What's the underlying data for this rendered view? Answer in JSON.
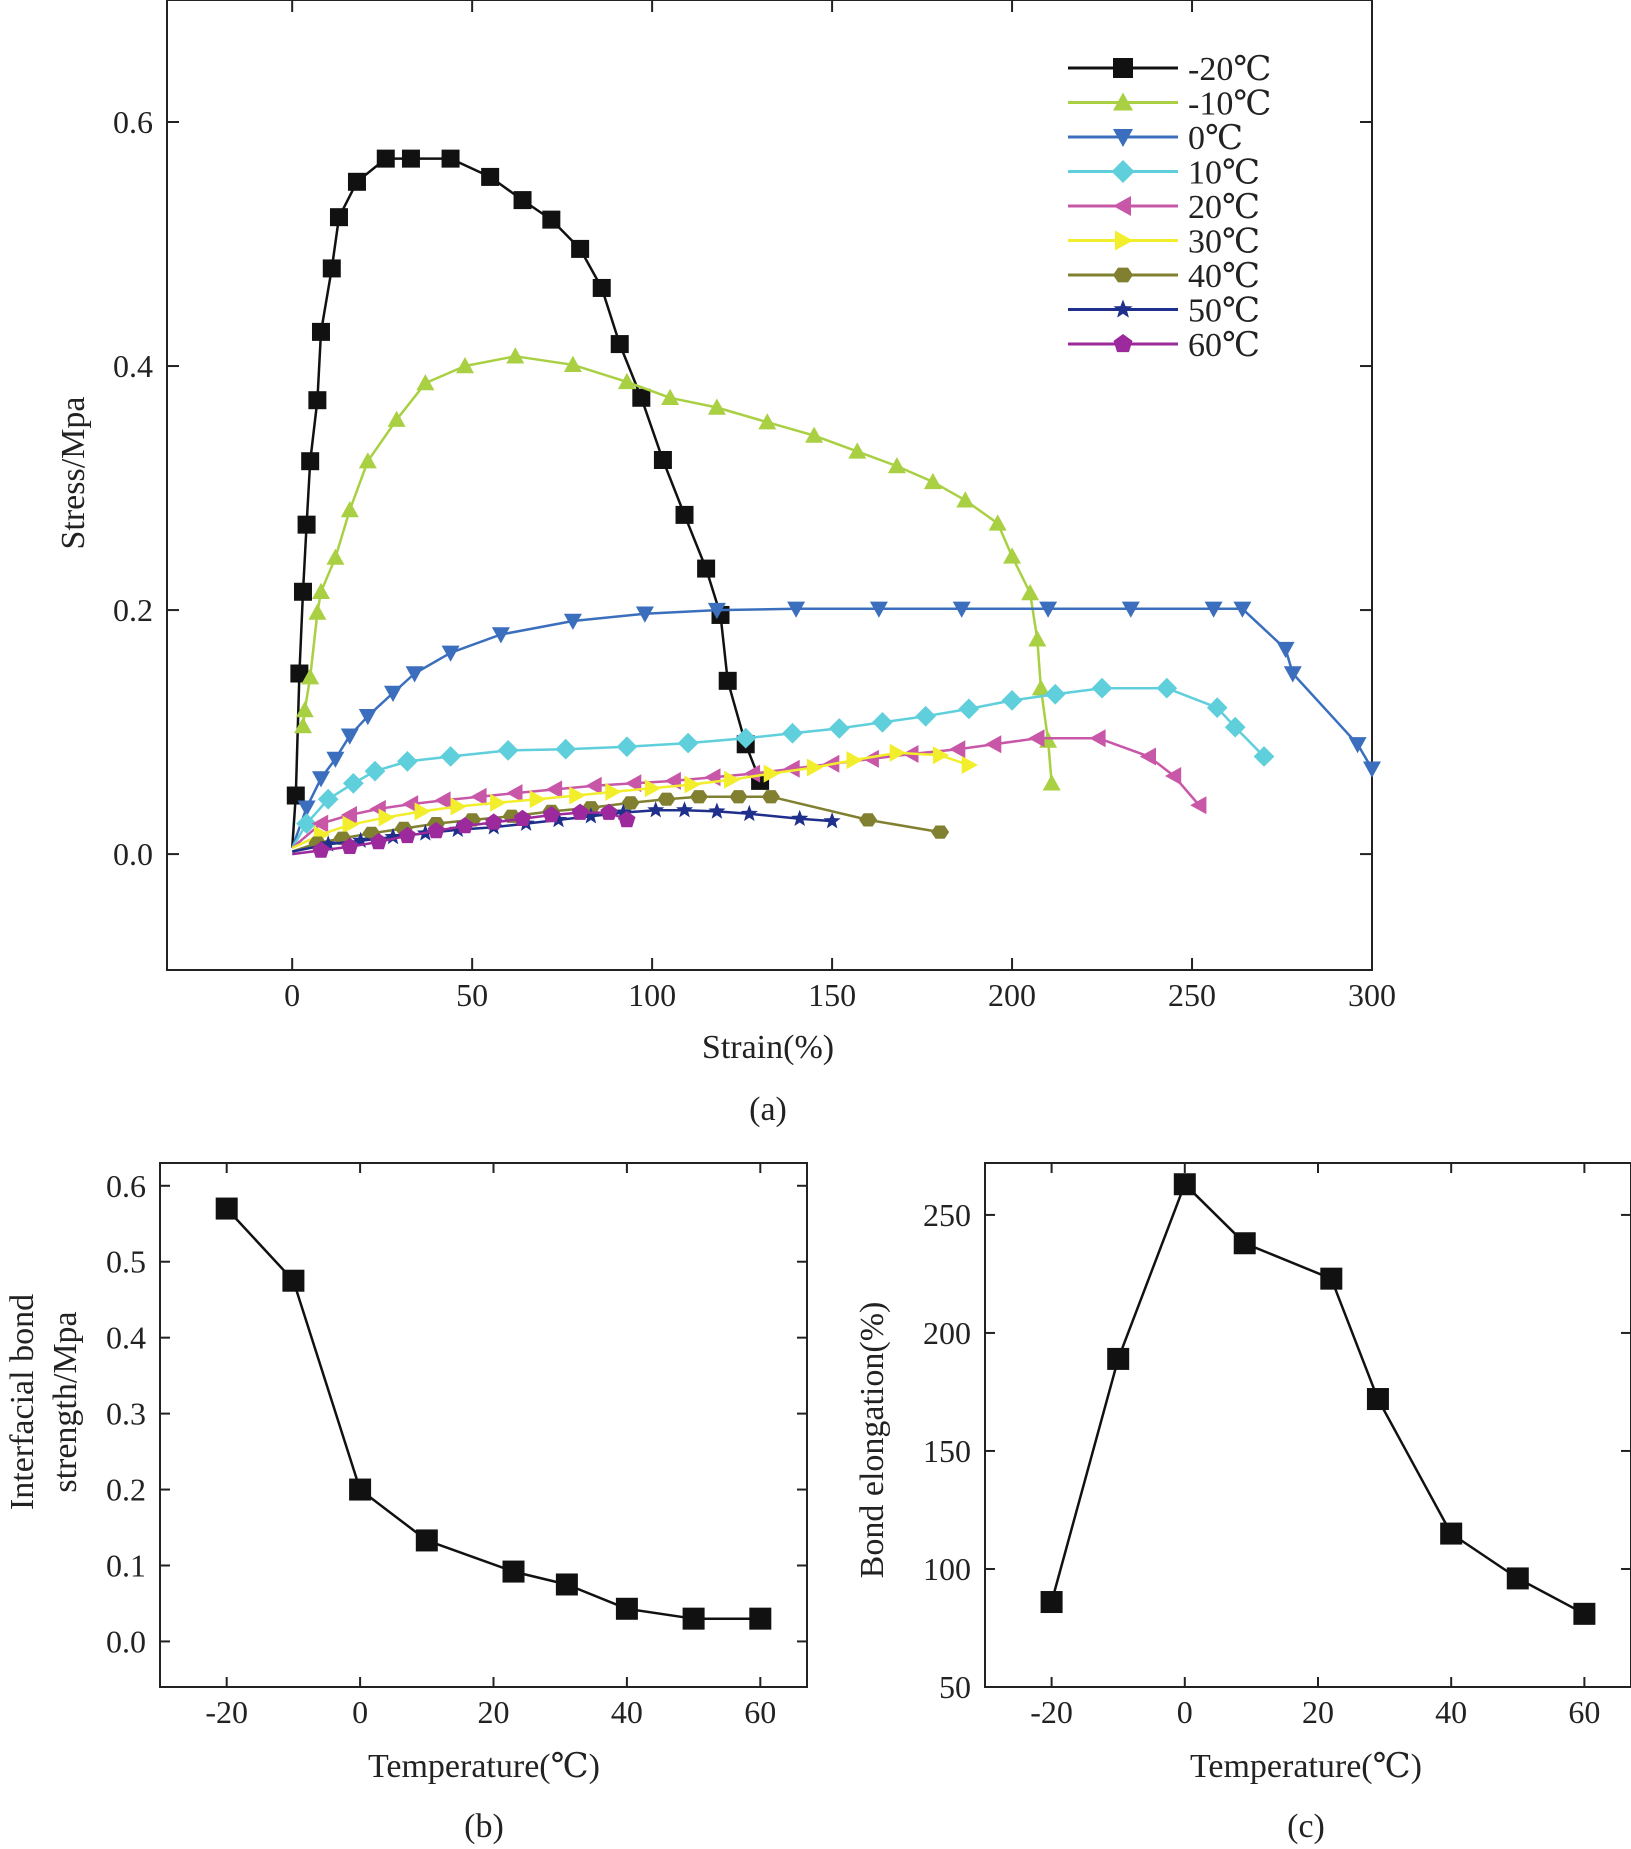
{
  "chart_data": [
    {
      "id": "a",
      "type": "line",
      "panel_label": "(a)",
      "xlabel": "Strain(%)",
      "ylabel": "Stress/Mpa",
      "xlim": [
        -27,
        300
      ],
      "ylim": [
        -0.095,
        0.7
      ],
      "xticks": [
        0,
        50,
        100,
        150,
        200,
        250,
        300
      ],
      "yticks": [
        0.0,
        0.2,
        0.4,
        0.6
      ],
      "ytick_labels": [
        "0.0",
        "0.2",
        "0.4",
        "0.6"
      ],
      "legend_position": "top-right",
      "series": [
        {
          "name": "-20℃",
          "color": "#111111",
          "marker": "square",
          "x": [
            0,
            1,
            2,
            3,
            4,
            5,
            7,
            8,
            11,
            13,
            18,
            26,
            33,
            44,
            55,
            64,
            72,
            80,
            86,
            91,
            97,
            103,
            109,
            115,
            119,
            121,
            126,
            130
          ],
          "y": [
            0.005,
            0.048,
            0.148,
            0.215,
            0.27,
            0.322,
            0.372,
            0.428,
            0.48,
            0.522,
            0.551,
            0.57,
            0.57,
            0.57,
            0.555,
            0.536,
            0.52,
            0.496,
            0.464,
            0.418,
            0.374,
            0.323,
            0.278,
            0.234,
            0.196,
            0.142,
            0.09,
            0.06
          ]
        },
        {
          "name": "-10℃",
          "color": "#a9d042",
          "marker": "triangle-up",
          "x": [
            3,
            3.5,
            5,
            7,
            8,
            12,
            16,
            21,
            29,
            37,
            48,
            62,
            78,
            93,
            105,
            118,
            132,
            145,
            157,
            168,
            178,
            187,
            196,
            200,
            205,
            207,
            208,
            210,
            211
          ],
          "y": [
            0.105,
            0.118,
            0.145,
            0.198,
            0.215,
            0.243,
            0.282,
            0.322,
            0.356,
            0.386,
            0.4,
            0.408,
            0.401,
            0.387,
            0.374,
            0.366,
            0.354,
            0.343,
            0.33,
            0.318,
            0.305,
            0.29,
            0.271,
            0.244,
            0.214,
            0.176,
            0.136,
            0.093,
            0.058
          ]
        },
        {
          "name": "0℃",
          "color": "#3b6fbe",
          "marker": "triangle-down",
          "x": [
            0,
            4,
            8,
            12,
            16,
            21,
            28,
            34,
            44,
            58,
            78,
            98,
            118,
            140,
            163,
            186,
            210,
            233,
            256,
            264,
            276,
            278,
            296,
            300
          ],
          "y": [
            0.005,
            0.038,
            0.062,
            0.078,
            0.097,
            0.113,
            0.132,
            0.148,
            0.165,
            0.18,
            0.191,
            0.197,
            0.2,
            0.201,
            0.201,
            0.201,
            0.201,
            0.201,
            0.201,
            0.201,
            0.168,
            0.148,
            0.09,
            0.07
          ]
        },
        {
          "name": "10℃",
          "color": "#5ecfdb",
          "marker": "diamond",
          "x": [
            0,
            4,
            10,
            17,
            23,
            32,
            44,
            60,
            76,
            93,
            110,
            126,
            139,
            152,
            164,
            176,
            188,
            200,
            212,
            225,
            243,
            257,
            262,
            270
          ],
          "y": [
            0.005,
            0.025,
            0.045,
            0.058,
            0.068,
            0.076,
            0.08,
            0.085,
            0.086,
            0.088,
            0.091,
            0.095,
            0.099,
            0.103,
            0.108,
            0.113,
            0.119,
            0.126,
            0.131,
            0.136,
            0.136,
            0.12,
            0.104,
            0.08
          ]
        },
        {
          "name": "20℃",
          "color": "#c957a8",
          "marker": "triangle-left",
          "x": [
            0,
            8,
            16,
            24,
            33,
            42,
            52,
            62,
            73,
            84,
            95,
            106,
            117,
            128,
            139,
            150,
            161,
            172,
            185,
            195,
            207,
            224,
            238,
            245,
            252
          ],
          "y": [
            0.005,
            0.025,
            0.032,
            0.037,
            0.041,
            0.044,
            0.047,
            0.05,
            0.053,
            0.056,
            0.058,
            0.06,
            0.063,
            0.066,
            0.07,
            0.074,
            0.078,
            0.082,
            0.086,
            0.09,
            0.095,
            0.095,
            0.08,
            0.064,
            0.04
          ]
        },
        {
          "name": "30℃",
          "color": "#f2ee2c",
          "marker": "triangle-right",
          "x": [
            0,
            8,
            16,
            26,
            36,
            46,
            57,
            68,
            79,
            89,
            100,
            111,
            122,
            133,
            145,
            156,
            168,
            180,
            188
          ],
          "y": [
            0.005,
            0.016,
            0.024,
            0.03,
            0.035,
            0.039,
            0.042,
            0.045,
            0.048,
            0.051,
            0.054,
            0.057,
            0.061,
            0.066,
            0.071,
            0.077,
            0.083,
            0.081,
            0.073
          ]
        },
        {
          "name": "40℃",
          "color": "#808030",
          "marker": "hexagon",
          "x": [
            0,
            7,
            14,
            22,
            31,
            40,
            50,
            61,
            72,
            83,
            94,
            104,
            113,
            124,
            133,
            160,
            180
          ],
          "y": [
            0.002,
            0.009,
            0.013,
            0.017,
            0.021,
            0.025,
            0.028,
            0.031,
            0.035,
            0.038,
            0.042,
            0.045,
            0.047,
            0.047,
            0.047,
            0.028,
            0.018
          ]
        },
        {
          "name": "50℃",
          "color": "#1f2f8c",
          "marker": "star",
          "x": [
            0,
            10,
            19,
            28,
            37,
            46,
            56,
            65,
            74,
            83,
            92,
            101,
            109,
            118,
            127,
            141,
            150
          ],
          "y": [
            0.002,
            0.008,
            0.011,
            0.014,
            0.017,
            0.02,
            0.022,
            0.025,
            0.028,
            0.031,
            0.034,
            0.036,
            0.036,
            0.035,
            0.033,
            0.029,
            0.027
          ]
        },
        {
          "name": "60℃",
          "color": "#9c2a9c",
          "marker": "pentagon",
          "x": [
            0,
            8,
            16,
            24,
            32,
            40,
            48,
            56,
            64,
            72,
            80,
            88,
            93
          ],
          "y": [
            0.0,
            0.003,
            0.006,
            0.01,
            0.015,
            0.019,
            0.023,
            0.026,
            0.029,
            0.032,
            0.034,
            0.034,
            0.028
          ]
        }
      ]
    },
    {
      "id": "b",
      "type": "line",
      "panel_label": "(b)",
      "xlabel": "Temperature(℃)",
      "ylabel_lines": [
        "Interfacial bond",
        "strength/Mpa"
      ],
      "xlim": [
        -30,
        67
      ],
      "ylim": [
        -0.06,
        0.63
      ],
      "xticks": [
        -20,
        0,
        20,
        40,
        60
      ],
      "yticks": [
        0.0,
        0.1,
        0.2,
        0.3,
        0.4,
        0.5,
        0.6
      ],
      "ytick_labels": [
        "0.0",
        "0.1",
        "0.2",
        "0.3",
        "0.4",
        "0.5",
        "0.6"
      ],
      "series": [
        {
          "name": "strength",
          "color": "#111111",
          "marker": "square",
          "x": [
            -20,
            -10,
            0,
            10,
            23,
            31,
            40,
            50,
            60
          ],
          "y": [
            0.57,
            0.475,
            0.2,
            0.133,
            0.092,
            0.075,
            0.043,
            0.03,
            0.03
          ]
        }
      ]
    },
    {
      "id": "c",
      "type": "line",
      "panel_label": "(c)",
      "xlabel": "Temperature(℃)",
      "ylabel": "Bond elongation(%)",
      "xlim": [
        -30,
        67
      ],
      "ylim": [
        50,
        272
      ],
      "xticks": [
        -20,
        0,
        20,
        40,
        60
      ],
      "yticks": [
        50,
        100,
        150,
        200,
        250
      ],
      "ytick_labels": [
        "50",
        "100",
        "150",
        "200",
        "250"
      ],
      "series": [
        {
          "name": "elongation",
          "color": "#111111",
          "marker": "square",
          "x": [
            -20,
            -10,
            0,
            9,
            22,
            29,
            40,
            50,
            60
          ],
          "y": [
            86,
            189,
            263,
            238,
            223,
            172,
            115,
            96,
            81
          ]
        }
      ]
    }
  ]
}
